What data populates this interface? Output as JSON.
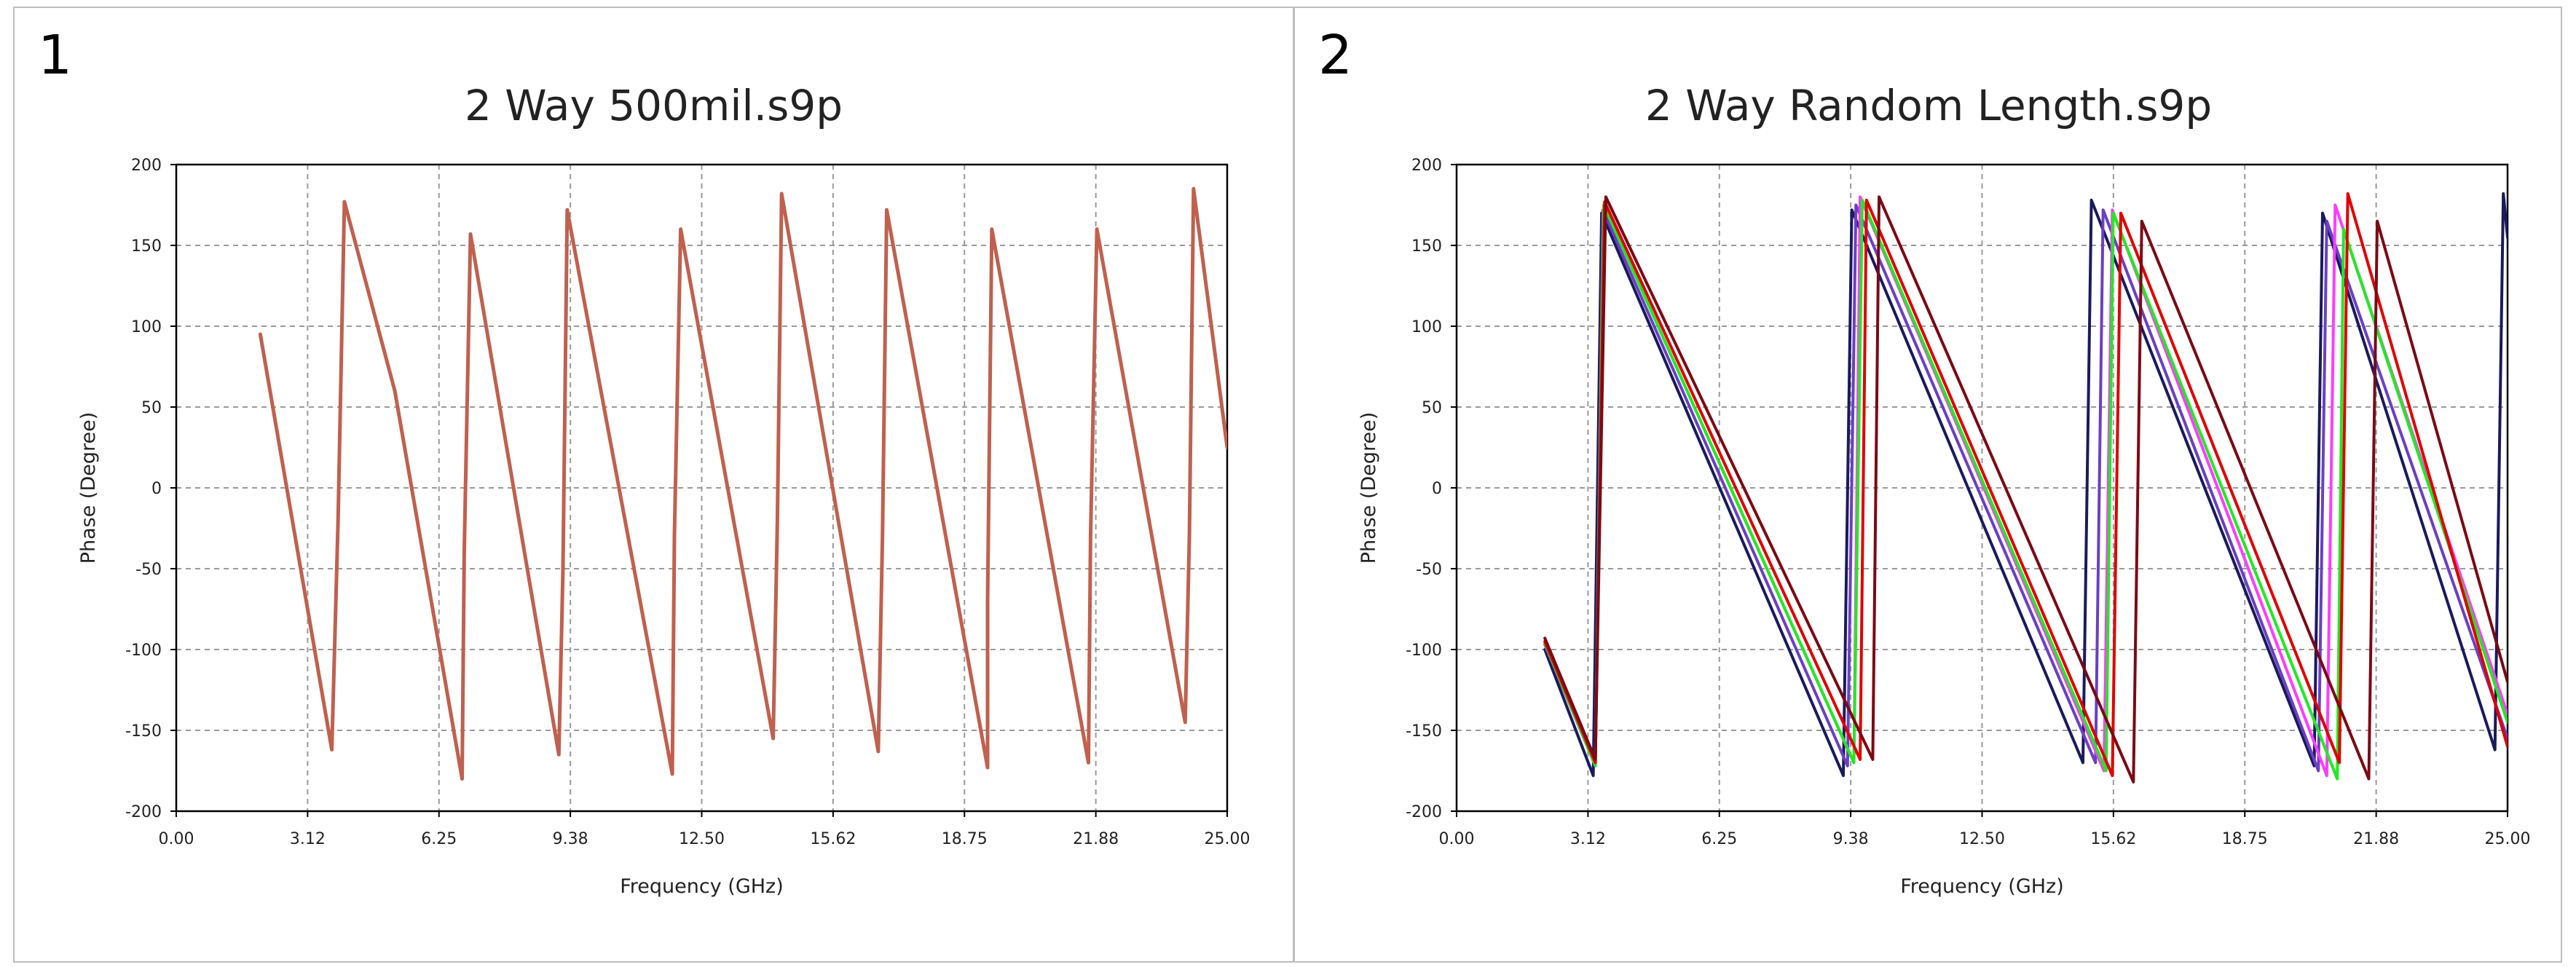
{
  "panels": [
    {
      "number": "1",
      "title": "2 Way 500mil.s9p"
    },
    {
      "number": "2",
      "title": "2 Way Random Length.s9p"
    }
  ],
  "chart_data": [
    {
      "type": "line",
      "title": "2 Way 500mil.s9p",
      "xlabel": "Frequency (GHz)",
      "ylabel": "Phase (Degree)",
      "xlim": [
        0,
        25
      ],
      "ylim": [
        -200,
        200
      ],
      "x_ticks": [
        "0.00",
        "3.12",
        "6.25",
        "9.38",
        "12.50",
        "15.62",
        "18.75",
        "21.88",
        "25.00"
      ],
      "y_ticks": [
        "200",
        "150",
        "100",
        "50",
        "0",
        "-50",
        "-100",
        "-150",
        "-200"
      ],
      "grid": true,
      "series": [
        {
          "color": "#c0604e",
          "width": 5,
          "points": [
            [
              2.0,
              95
            ],
            [
              3.7,
              -162
            ],
            [
              3.85,
              -20
            ],
            [
              4.0,
              177
            ],
            [
              5.2,
              60
            ],
            [
              6.8,
              -180
            ],
            [
              6.85,
              -40
            ],
            [
              7.0,
              157
            ],
            [
              9.1,
              -165
            ],
            [
              9.2,
              -50
            ],
            [
              9.3,
              172
            ],
            [
              11.8,
              -177
            ],
            [
              11.85,
              -30
            ],
            [
              12.0,
              160
            ],
            [
              14.2,
              -155
            ],
            [
              14.3,
              -20
            ],
            [
              14.4,
              182
            ],
            [
              16.7,
              -163
            ],
            [
              16.8,
              -30
            ],
            [
              16.9,
              172
            ],
            [
              19.3,
              -173
            ],
            [
              19.3,
              -70
            ],
            [
              19.4,
              160
            ],
            [
              21.7,
              -170
            ],
            [
              21.75,
              -30
            ],
            [
              21.9,
              160
            ],
            [
              24.0,
              -145
            ],
            [
              24.1,
              -30
            ],
            [
              24.2,
              185
            ],
            [
              25.0,
              25
            ]
          ]
        }
      ]
    },
    {
      "type": "line",
      "title": "2 Way Random Length.s9p",
      "xlabel": "Frequency (GHz)",
      "ylabel": "Phase (Degree)",
      "xlim": [
        0,
        25
      ],
      "ylim": [
        -200,
        200
      ],
      "x_ticks": [
        "0.00",
        "3.12",
        "6.25",
        "9.38",
        "12.50",
        "15.62",
        "18.75",
        "21.88",
        "25.00"
      ],
      "y_ticks": [
        "200",
        "150",
        "100",
        "50",
        "0",
        "-50",
        "-100",
        "-150",
        "-200"
      ],
      "grid": true,
      "series": [
        {
          "color": "#1a1a5e",
          "width": 4,
          "points": [
            [
              2.1,
              -100
            ],
            [
              3.25,
              -178
            ],
            [
              3.45,
              170
            ],
            [
              9.2,
              -178
            ],
            [
              9.4,
              172
            ],
            [
              14.9,
              -170
            ],
            [
              15.1,
              178
            ],
            [
              20.4,
              -172
            ],
            [
              20.6,
              170
            ],
            [
              24.7,
              -162
            ],
            [
              24.9,
              182
            ],
            [
              25.0,
              155
            ]
          ]
        },
        {
          "color": "#6a3fc4",
          "width": 4,
          "points": [
            [
              2.1,
              -97
            ],
            [
              3.3,
              -172
            ],
            [
              3.48,
              172
            ],
            [
              9.3,
              -172
            ],
            [
              9.5,
              175
            ],
            [
              15.2,
              -170
            ],
            [
              15.38,
              172
            ],
            [
              20.5,
              -175
            ],
            [
              20.7,
              165
            ],
            [
              25.0,
              -155
            ]
          ]
        },
        {
          "color": "#ff3cff",
          "width": 4,
          "points": [
            [
              2.1,
              -96
            ],
            [
              3.3,
              -172
            ],
            [
              3.5,
              175
            ],
            [
              9.45,
              -170
            ],
            [
              9.6,
              180
            ],
            [
              15.4,
              -175
            ],
            [
              15.6,
              172
            ],
            [
              20.7,
              -178
            ],
            [
              20.9,
              175
            ],
            [
              25.0,
              -140
            ]
          ]
        },
        {
          "color": "#22e822",
          "width": 4,
          "points": [
            [
              2.1,
              -96
            ],
            [
              3.3,
              -172
            ],
            [
              3.5,
              175
            ],
            [
              9.45,
              -170
            ],
            [
              9.65,
              178
            ],
            [
              15.45,
              -175
            ],
            [
              15.62,
              170
            ],
            [
              20.95,
              -180
            ],
            [
              21.1,
              160
            ],
            [
              25.0,
              -145
            ]
          ]
        },
        {
          "color": "#e00000",
          "width": 4,
          "points": [
            [
              2.1,
              -95
            ],
            [
              3.3,
              -170
            ],
            [
              3.52,
              177
            ],
            [
              9.6,
              -168
            ],
            [
              9.75,
              178
            ],
            [
              15.6,
              -178
            ],
            [
              15.8,
              170
            ],
            [
              21.0,
              -170
            ],
            [
              21.2,
              182
            ],
            [
              25.0,
              -160
            ]
          ]
        },
        {
          "color": "#7a0a14",
          "width": 4,
          "points": [
            [
              2.1,
              -93
            ],
            [
              3.3,
              -168
            ],
            [
              3.55,
              180
            ],
            [
              9.9,
              -168
            ],
            [
              10.05,
              180
            ],
            [
              16.1,
              -182
            ],
            [
              16.3,
              165
            ],
            [
              21.7,
              -180
            ],
            [
              21.9,
              165
            ],
            [
              25.0,
              -120
            ]
          ]
        }
      ]
    }
  ]
}
